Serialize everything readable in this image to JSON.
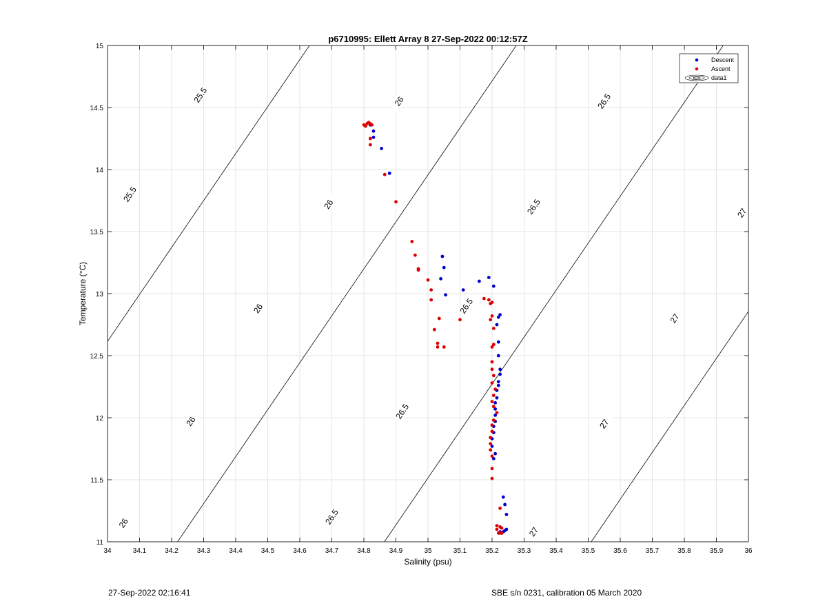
{
  "chart_data": {
    "type": "scatter",
    "title": "p6710995: Ellett Array 8 27-Sep-2022 00:12:57Z",
    "xlabel": "Salinity (psu)",
    "ylabel": "Temperature (°C)",
    "xlim": [
      34,
      36
    ],
    "ylim": [
      11,
      15
    ],
    "xticks": [
      "34",
      "34.1",
      "34.2",
      "34.3",
      "34.4",
      "34.5",
      "34.6",
      "34.7",
      "34.8",
      "34.9",
      "35",
      "35.1",
      "35.2",
      "35.3",
      "35.4",
      "35.5",
      "35.6",
      "35.7",
      "35.8",
      "35.9",
      "36"
    ],
    "yticks": [
      "11",
      "11.5",
      "12",
      "12.5",
      "13",
      "13.5",
      "14",
      "14.5",
      "15"
    ],
    "grid": true,
    "legend_position": "top-right",
    "legend": [
      "Descent",
      "Ascent",
      "data1"
    ],
    "colors": {
      "descent": "#0000cc",
      "ascent": "#dd0000",
      "contour": "#000000",
      "grid": "#e6e6e6"
    },
    "contours": [
      {
        "level": "25.5",
        "labels": [
          {
            "text": "25.5",
            "x": 34.07,
            "y": 13.8
          },
          {
            "text": "25.5",
            "x": 34.29,
            "y": 14.6
          }
        ]
      },
      {
        "level": "26",
        "labels": [
          {
            "text": "26",
            "x": 34.05,
            "y": 11.15
          },
          {
            "text": "26",
            "x": 34.26,
            "y": 11.97
          },
          {
            "text": "26",
            "x": 34.47,
            "y": 12.88
          },
          {
            "text": "26",
            "x": 34.69,
            "y": 13.72
          },
          {
            "text": "26",
            "x": 34.91,
            "y": 14.55
          }
        ]
      },
      {
        "level": "26.5",
        "labels": [
          {
            "text": "26.5",
            "x": 34.7,
            "y": 11.2
          },
          {
            "text": "26.5",
            "x": 34.92,
            "y": 12.05
          },
          {
            "text": "26.5",
            "x": 35.12,
            "y": 12.9
          },
          {
            "text": "26.5",
            "x": 35.33,
            "y": 13.7
          },
          {
            "text": "26.5",
            "x": 35.55,
            "y": 14.55
          }
        ]
      },
      {
        "level": "27",
        "labels": [
          {
            "text": "27",
            "x": 35.33,
            "y": 11.08
          },
          {
            "text": "27",
            "x": 35.55,
            "y": 11.95
          },
          {
            "text": "27",
            "x": 35.77,
            "y": 12.8
          },
          {
            "text": "27",
            "x": 35.98,
            "y": 13.65
          }
        ]
      }
    ],
    "series": [
      {
        "name": "Descent",
        "points": [
          [
            34.82,
            14.36
          ],
          [
            34.83,
            14.31
          ],
          [
            34.83,
            14.26
          ],
          [
            34.855,
            14.17
          ],
          [
            34.88,
            13.97
          ],
          [
            35.045,
            13.3
          ],
          [
            35.05,
            13.21
          ],
          [
            35.04,
            13.12
          ],
          [
            35.055,
            12.99
          ],
          [
            35.11,
            13.03
          ],
          [
            35.16,
            13.1
          ],
          [
            35.19,
            13.13
          ],
          [
            35.205,
            13.06
          ],
          [
            35.225,
            12.83
          ],
          [
            35.22,
            12.81
          ],
          [
            35.215,
            12.75
          ],
          [
            35.22,
            12.61
          ],
          [
            35.22,
            12.5
          ],
          [
            35.225,
            12.39
          ],
          [
            35.225,
            12.35
          ],
          [
            35.22,
            12.29
          ],
          [
            35.22,
            12.26
          ],
          [
            35.215,
            12.22
          ],
          [
            35.215,
            12.16
          ],
          [
            35.21,
            12.12
          ],
          [
            35.21,
            12.07
          ],
          [
            35.21,
            12.02
          ],
          [
            35.21,
            11.97
          ],
          [
            35.205,
            11.93
          ],
          [
            35.205,
            11.88
          ],
          [
            35.2,
            11.83
          ],
          [
            35.2,
            11.77
          ],
          [
            35.21,
            11.71
          ],
          [
            35.205,
            11.67
          ],
          [
            35.235,
            11.36
          ],
          [
            35.24,
            11.3
          ],
          [
            35.245,
            11.22
          ],
          [
            35.245,
            11.1
          ],
          [
            35.24,
            11.09
          ],
          [
            35.235,
            11.08
          ],
          [
            35.23,
            11.07
          ],
          [
            35.225,
            11.08
          ]
        ]
      },
      {
        "name": "Ascent",
        "points": [
          [
            34.8,
            14.36
          ],
          [
            34.805,
            14.35
          ],
          [
            34.81,
            14.37
          ],
          [
            34.815,
            14.38
          ],
          [
            34.82,
            14.37
          ],
          [
            34.825,
            14.36
          ],
          [
            34.82,
            14.25
          ],
          [
            34.82,
            14.2
          ],
          [
            34.865,
            13.96
          ],
          [
            34.9,
            13.74
          ],
          [
            34.95,
            13.42
          ],
          [
            34.96,
            13.31
          ],
          [
            34.97,
            13.2
          ],
          [
            34.97,
            13.19
          ],
          [
            35.0,
            13.11
          ],
          [
            35.01,
            13.03
          ],
          [
            35.01,
            12.95
          ],
          [
            35.035,
            12.8
          ],
          [
            35.02,
            12.71
          ],
          [
            35.03,
            12.6
          ],
          [
            35.03,
            12.57
          ],
          [
            35.05,
            12.57
          ],
          [
            35.1,
            12.79
          ],
          [
            35.175,
            12.96
          ],
          [
            35.19,
            12.95
          ],
          [
            35.195,
            12.92
          ],
          [
            35.2,
            12.93
          ],
          [
            35.2,
            12.82
          ],
          [
            35.195,
            12.79
          ],
          [
            35.205,
            12.72
          ],
          [
            35.2,
            12.57
          ],
          [
            35.205,
            12.59
          ],
          [
            35.2,
            12.45
          ],
          [
            35.2,
            12.39
          ],
          [
            35.205,
            12.34
          ],
          [
            35.2,
            12.28
          ],
          [
            35.21,
            12.23
          ],
          [
            35.205,
            12.18
          ],
          [
            35.2,
            12.13
          ],
          [
            35.205,
            12.09
          ],
          [
            35.215,
            12.04
          ],
          [
            35.205,
            11.98
          ],
          [
            35.2,
            11.94
          ],
          [
            35.2,
            11.89
          ],
          [
            35.195,
            11.84
          ],
          [
            35.195,
            11.79
          ],
          [
            35.195,
            11.74
          ],
          [
            35.2,
            11.69
          ],
          [
            35.2,
            11.59
          ],
          [
            35.2,
            11.51
          ],
          [
            35.225,
            11.27
          ],
          [
            35.215,
            11.13
          ],
          [
            35.215,
            11.1
          ],
          [
            35.22,
            11.07
          ],
          [
            35.225,
            11.12
          ],
          [
            35.23,
            11.11
          ],
          [
            35.23,
            11.07
          ],
          [
            35.225,
            11.07
          ]
        ]
      }
    ]
  },
  "footer": {
    "timestamp": "27-Sep-2022 02:16:41",
    "instrument": "SBE s/n 0231, calibration 05 March 2020"
  }
}
